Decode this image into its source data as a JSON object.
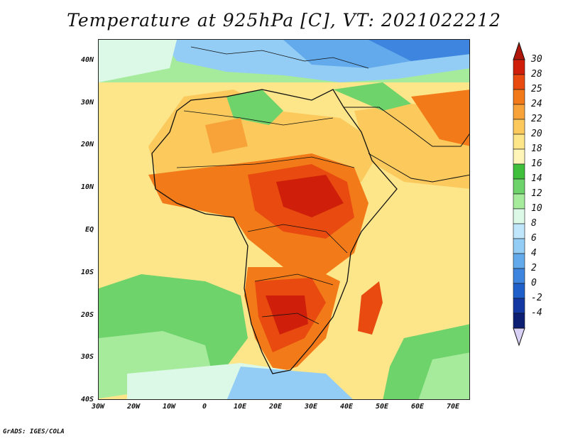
{
  "title": "Temperature at 925hPa [C], VT: 2021022212",
  "credit": "GrADS: IGES/COLA",
  "map": {
    "lat_labels": [
      "40N",
      "30N",
      "20N",
      "10N",
      "EQ",
      "10S",
      "20S",
      "30S",
      "40S"
    ],
    "lon_labels": [
      "30W",
      "20W",
      "10W",
      "0",
      "10E",
      "20E",
      "30E",
      "40E",
      "50E",
      "60E",
      "70E"
    ]
  },
  "colorbar": {
    "labels": [
      "30",
      "28",
      "25",
      "24",
      "22",
      "20",
      "18",
      "16",
      "14",
      "12",
      "10",
      "8",
      "6",
      "4",
      "2",
      "0",
      "-2",
      "-4"
    ],
    "colors": [
      "#cf1f0a",
      "#e84a10",
      "#f27a18",
      "#f7a33a",
      "#fbc95c",
      "#fde58a",
      "#fff5b8",
      "#3fbf3c",
      "#6ed36a",
      "#a6ea9c",
      "#dcf9e8",
      "#bfe6fb",
      "#93cdf5",
      "#62aaeb",
      "#3d85de",
      "#1f5fc9",
      "#1438a3",
      "#0d1f73"
    ],
    "top_arrow_color": "#b0160a",
    "bottom_arrow_color": "#d9d0f5"
  }
}
